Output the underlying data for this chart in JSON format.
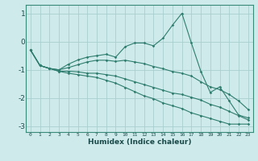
{
  "xlabel": "Humidex (Indice chaleur)",
  "bg_color": "#ceeaea",
  "line_color": "#2e7d6e",
  "grid_color": "#aacece",
  "x": [
    0,
    1,
    2,
    3,
    4,
    5,
    6,
    7,
    8,
    9,
    10,
    11,
    12,
    13,
    14,
    15,
    16,
    17,
    18,
    19,
    20,
    21,
    22,
    23
  ],
  "line1": [
    -0.3,
    -0.85,
    -0.95,
    -1.0,
    -0.8,
    -0.65,
    -0.55,
    -0.5,
    -0.45,
    -0.55,
    -0.18,
    -0.05,
    -0.05,
    -0.15,
    0.12,
    0.58,
    1.0,
    -0.05,
    -1.05,
    -1.8,
    -1.6,
    -2.1,
    -2.6,
    -2.7
  ],
  "line2": [
    -0.3,
    -0.85,
    -0.95,
    -1.0,
    -0.92,
    -0.82,
    -0.72,
    -0.66,
    -0.66,
    -0.7,
    -0.66,
    -0.72,
    -0.78,
    -0.88,
    -0.96,
    -1.06,
    -1.12,
    -1.22,
    -1.42,
    -1.6,
    -1.7,
    -1.87,
    -2.1,
    -2.4
  ],
  "line3": [
    -0.3,
    -0.85,
    -0.95,
    -1.05,
    -1.05,
    -1.07,
    -1.12,
    -1.12,
    -1.17,
    -1.22,
    -1.32,
    -1.42,
    -1.52,
    -1.62,
    -1.72,
    -1.82,
    -1.87,
    -1.97,
    -2.07,
    -2.22,
    -2.32,
    -2.47,
    -2.62,
    -2.77
  ],
  "line4": [
    -0.3,
    -0.85,
    -0.95,
    -1.05,
    -1.12,
    -1.17,
    -1.22,
    -1.27,
    -1.37,
    -1.47,
    -1.62,
    -1.77,
    -1.92,
    -2.02,
    -2.17,
    -2.27,
    -2.37,
    -2.52,
    -2.62,
    -2.72,
    -2.82,
    -2.92,
    -2.92,
    -2.92
  ],
  "ylim": [
    -3.2,
    1.3
  ],
  "yticks": [
    -3,
    -2,
    -1,
    0,
    1
  ],
  "xlim": [
    -0.5,
    23.5
  ]
}
